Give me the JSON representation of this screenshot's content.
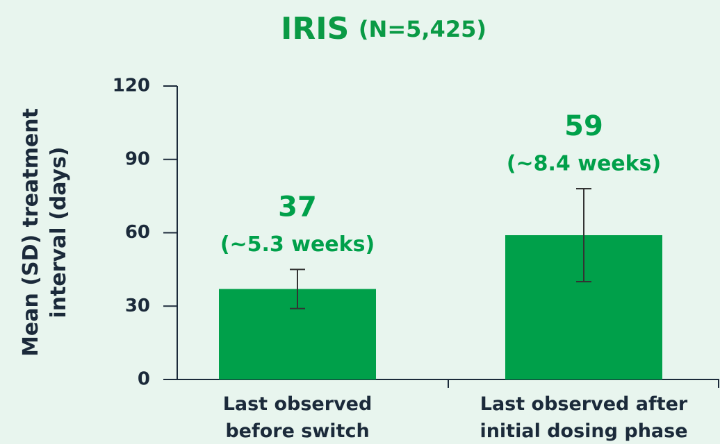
{
  "chart_data": {
    "type": "bar",
    "title": "IRIS",
    "subtitle": "(N=5,425)",
    "ylabel": [
      "Mean (SD) treatment",
      "interval (days)"
    ],
    "categories": [
      [
        "Last observed",
        "before switch"
      ],
      [
        "Last observed after",
        "initial dosing phase"
      ]
    ],
    "values": [
      37,
      59
    ],
    "errors": [
      8,
      19
    ],
    "annotations": [
      "(~5.3 weeks)",
      "(~8.4 weeks)"
    ],
    "color": "#00a04a",
    "ylim": [
      0,
      120
    ],
    "yticks": [
      0,
      30,
      60,
      90,
      120
    ]
  }
}
